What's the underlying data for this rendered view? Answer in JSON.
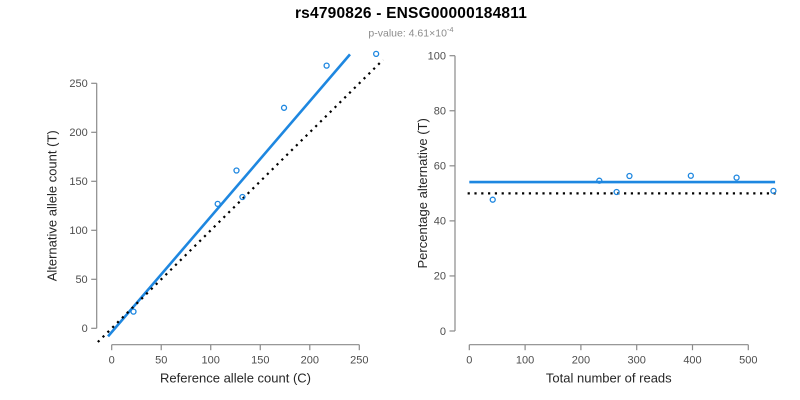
{
  "figure": {
    "title": "rs4790826 - ENSG00000184811",
    "subtitle_prefix": "p-value: 4.61×10",
    "subtitle_exponent": "-4"
  },
  "colors": {
    "accent": "#1E87E0",
    "dotted_line": "#000000",
    "axis": "#8a8a8a",
    "tick_text": "#4d4d4d",
    "axis_title_text": "#262626",
    "subtitle_text": "#8c8c8c"
  },
  "chart_data": [
    {
      "type": "scatter",
      "name": "alt-count-vs-ref-count",
      "xlabel": "Reference allele count (C)",
      "ylabel": "Alternative allele count (T)",
      "xticks": [
        0,
        50,
        100,
        150,
        200,
        250
      ],
      "yticks": [
        0,
        50,
        100,
        150,
        200,
        250
      ],
      "xlim": [
        0,
        250
      ],
      "ylim": [
        0,
        250
      ],
      "grid": false,
      "points": [
        [
          22,
          17
        ],
        [
          107,
          127
        ],
        [
          126,
          161
        ],
        [
          132,
          134
        ],
        [
          174,
          225
        ],
        [
          217,
          268
        ],
        [
          267,
          280
        ]
      ],
      "lines": [
        {
          "label": "regression-fit",
          "slope": 1.178,
          "intercept": -3.9,
          "x_range": [
            -3.7,
            240.6
          ],
          "style": "solid",
          "color_key": "accent"
        },
        {
          "label": "identity-y-equals-x",
          "slope": 1,
          "intercept": 0,
          "x_range": [
            -14,
            274
          ],
          "style": "dotted",
          "color_key": "dotted_line"
        }
      ]
    },
    {
      "type": "scatter",
      "name": "pct-alternative-vs-total-reads",
      "xlabel": "Total number of reads",
      "ylabel": "Percentage alternative (T)",
      "xticks": [
        0,
        100,
        200,
        300,
        400,
        500
      ],
      "yticks": [
        0,
        20,
        40,
        60,
        80,
        100
      ],
      "xlim": [
        0,
        500
      ],
      "ylim": [
        0,
        100
      ],
      "grid": false,
      "points": [
        [
          42,
          47.7
        ],
        [
          233,
          54.6
        ],
        [
          264,
          50.5
        ],
        [
          287,
          56.3
        ],
        [
          397,
          56.4
        ],
        [
          479,
          55.7
        ],
        [
          545,
          50.9
        ]
      ],
      "lines": [
        {
          "label": "fit-mean-percentage",
          "slope": 0,
          "intercept": 54.1,
          "x_range": [
            0,
            548
          ],
          "style": "solid",
          "color_key": "accent"
        },
        {
          "label": "reference-50-percent",
          "slope": 0,
          "intercept": 50,
          "x_range": [
            -3,
            549
          ],
          "style": "dotted",
          "color_key": "dotted_line"
        }
      ]
    }
  ]
}
